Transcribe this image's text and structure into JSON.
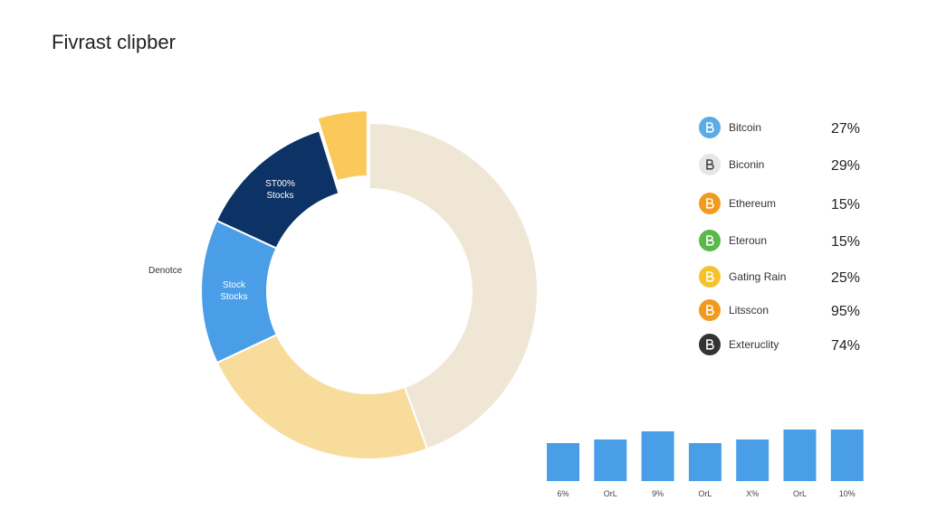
{
  "title": "Fivrast clipber",
  "chart_data": [
    {
      "type": "pie",
      "categories": [
        null,
        null,
        "Stock Stocks",
        "ST00% Stocks",
        null
      ],
      "values": [
        44.4,
        23.6,
        13.9,
        13.3,
        4.8
      ],
      "colors": [
        "#efe6d6",
        "#f8dc9c",
        "#4a9ee8",
        "#0d3366",
        "#fbc95a"
      ],
      "annotation": "Denotce"
    },
    {
      "type": "bar",
      "categories": [
        "6%",
        "OrL",
        "9%",
        "OrL",
        "X%",
        "OrL",
        "10%"
      ],
      "values": [
        42,
        46,
        55,
        42,
        46,
        57,
        57
      ],
      "color": "#4a9ee8"
    }
  ],
  "assets": [
    {
      "name": "Bitcoin",
      "share": "27%",
      "color": "#5aabe6"
    },
    {
      "name": "Biconin",
      "share": "29%",
      "color": "#e6e6e6"
    },
    {
      "name": "Ethereum",
      "share": "15%",
      "color": "#f29a1f"
    },
    {
      "name": "Eteroun",
      "share": "15%",
      "color": "#5bb84a"
    },
    {
      "name": "Gating Rain",
      "share": "25%",
      "color": "#f5c22b"
    },
    {
      "name": "Litsscon",
      "share": "95%",
      "color": "#f29a1f"
    },
    {
      "name": "Exteruclity",
      "share": "74%",
      "color": "#333333"
    }
  ]
}
